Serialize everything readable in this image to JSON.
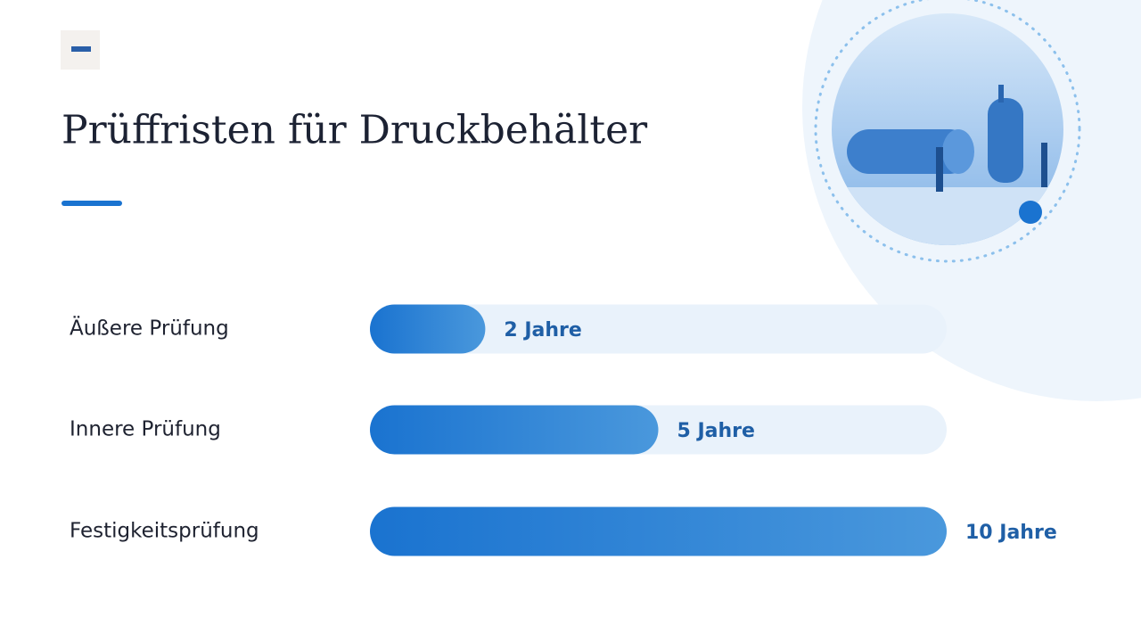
{
  "chart_data": {
    "type": "bar",
    "title": "Prüffristen für Druckbehälter",
    "categories": [
      "Äußere Prüfung",
      "Innere Prüfung",
      "Festigkeitsprüfung"
    ],
    "values": [
      2,
      5,
      10
    ],
    "value_labels": [
      "2 Jahre",
      "5 Jahre",
      "10 Jahre"
    ],
    "color": "#1a73d0",
    "xlim": [
      0,
      10
    ]
  }
}
